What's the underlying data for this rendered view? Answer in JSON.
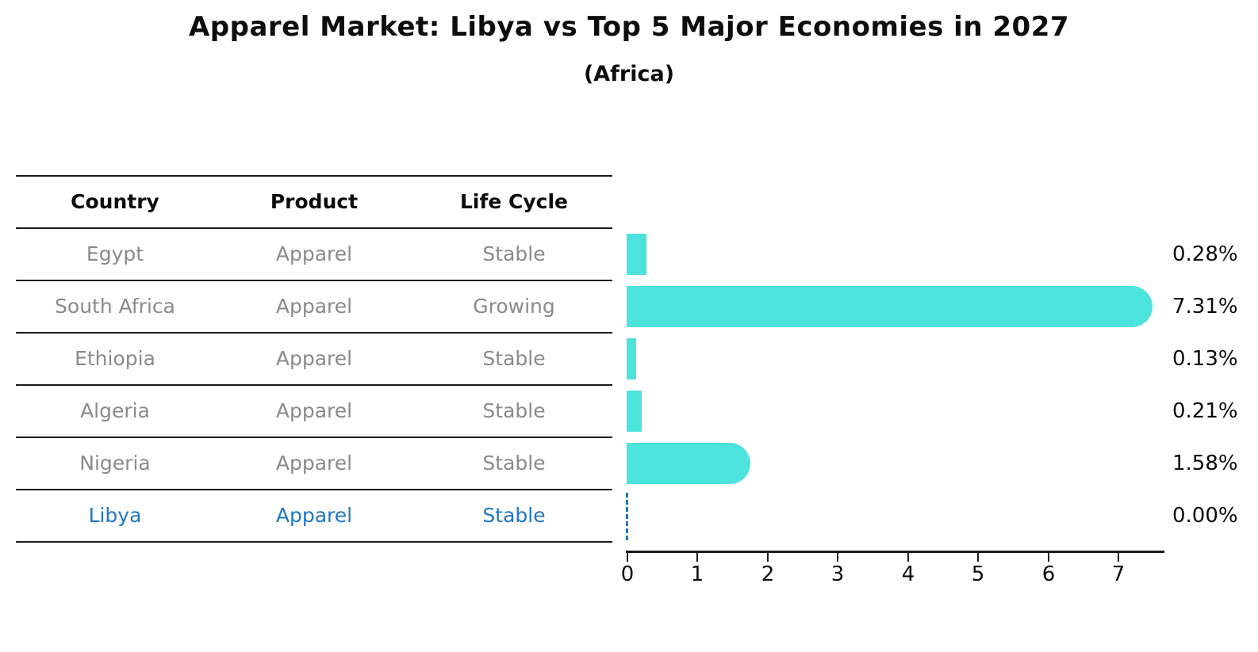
{
  "header": {
    "title": "Apparel Market: Libya vs Top 5 Major Economies in 2027",
    "subtitle": "(Africa)"
  },
  "table": {
    "columns": [
      "Country",
      "Product",
      "Life Cycle"
    ],
    "rows": [
      {
        "country": "Egypt",
        "product": "Apparel",
        "life_cycle": "Stable"
      },
      {
        "country": "South Africa",
        "product": "Apparel",
        "life_cycle": "Growing"
      },
      {
        "country": "Ethiopia",
        "product": "Apparel",
        "life_cycle": "Stable"
      },
      {
        "country": "Algeria",
        "product": "Apparel",
        "life_cycle": "Stable"
      },
      {
        "country": "Nigeria",
        "product": "Apparel",
        "life_cycle": "Stable"
      },
      {
        "country": "Libya",
        "product": "Apparel",
        "life_cycle": "Stable"
      }
    ],
    "highlight_row": "Libya"
  },
  "chart_data": {
    "type": "bar",
    "orientation": "horizontal",
    "title": "Apparel Market: Libya vs Top 5 Major Economies in 2027",
    "subtitle": "(Africa)",
    "categories": [
      "Egypt",
      "South Africa",
      "Ethiopia",
      "Algeria",
      "Nigeria",
      "Libya"
    ],
    "values": [
      0.28,
      7.31,
      0.13,
      0.21,
      1.58,
      0.0
    ],
    "value_labels": [
      "0.28%",
      "7.31%",
      "0.13%",
      "0.21%",
      "1.58%",
      "0.00%"
    ],
    "xlabel": "",
    "ylabel": "",
    "xlim": [
      0,
      7.65
    ],
    "xticks": [
      "0",
      "1",
      "2",
      "3",
      "4",
      "5",
      "6",
      "7"
    ],
    "grid": false,
    "legend": false,
    "bar_color": "#4BE3DC",
    "highlight_color": "#2176C4",
    "highlight_index": 5,
    "zero_value_marker": "dashed-line"
  }
}
